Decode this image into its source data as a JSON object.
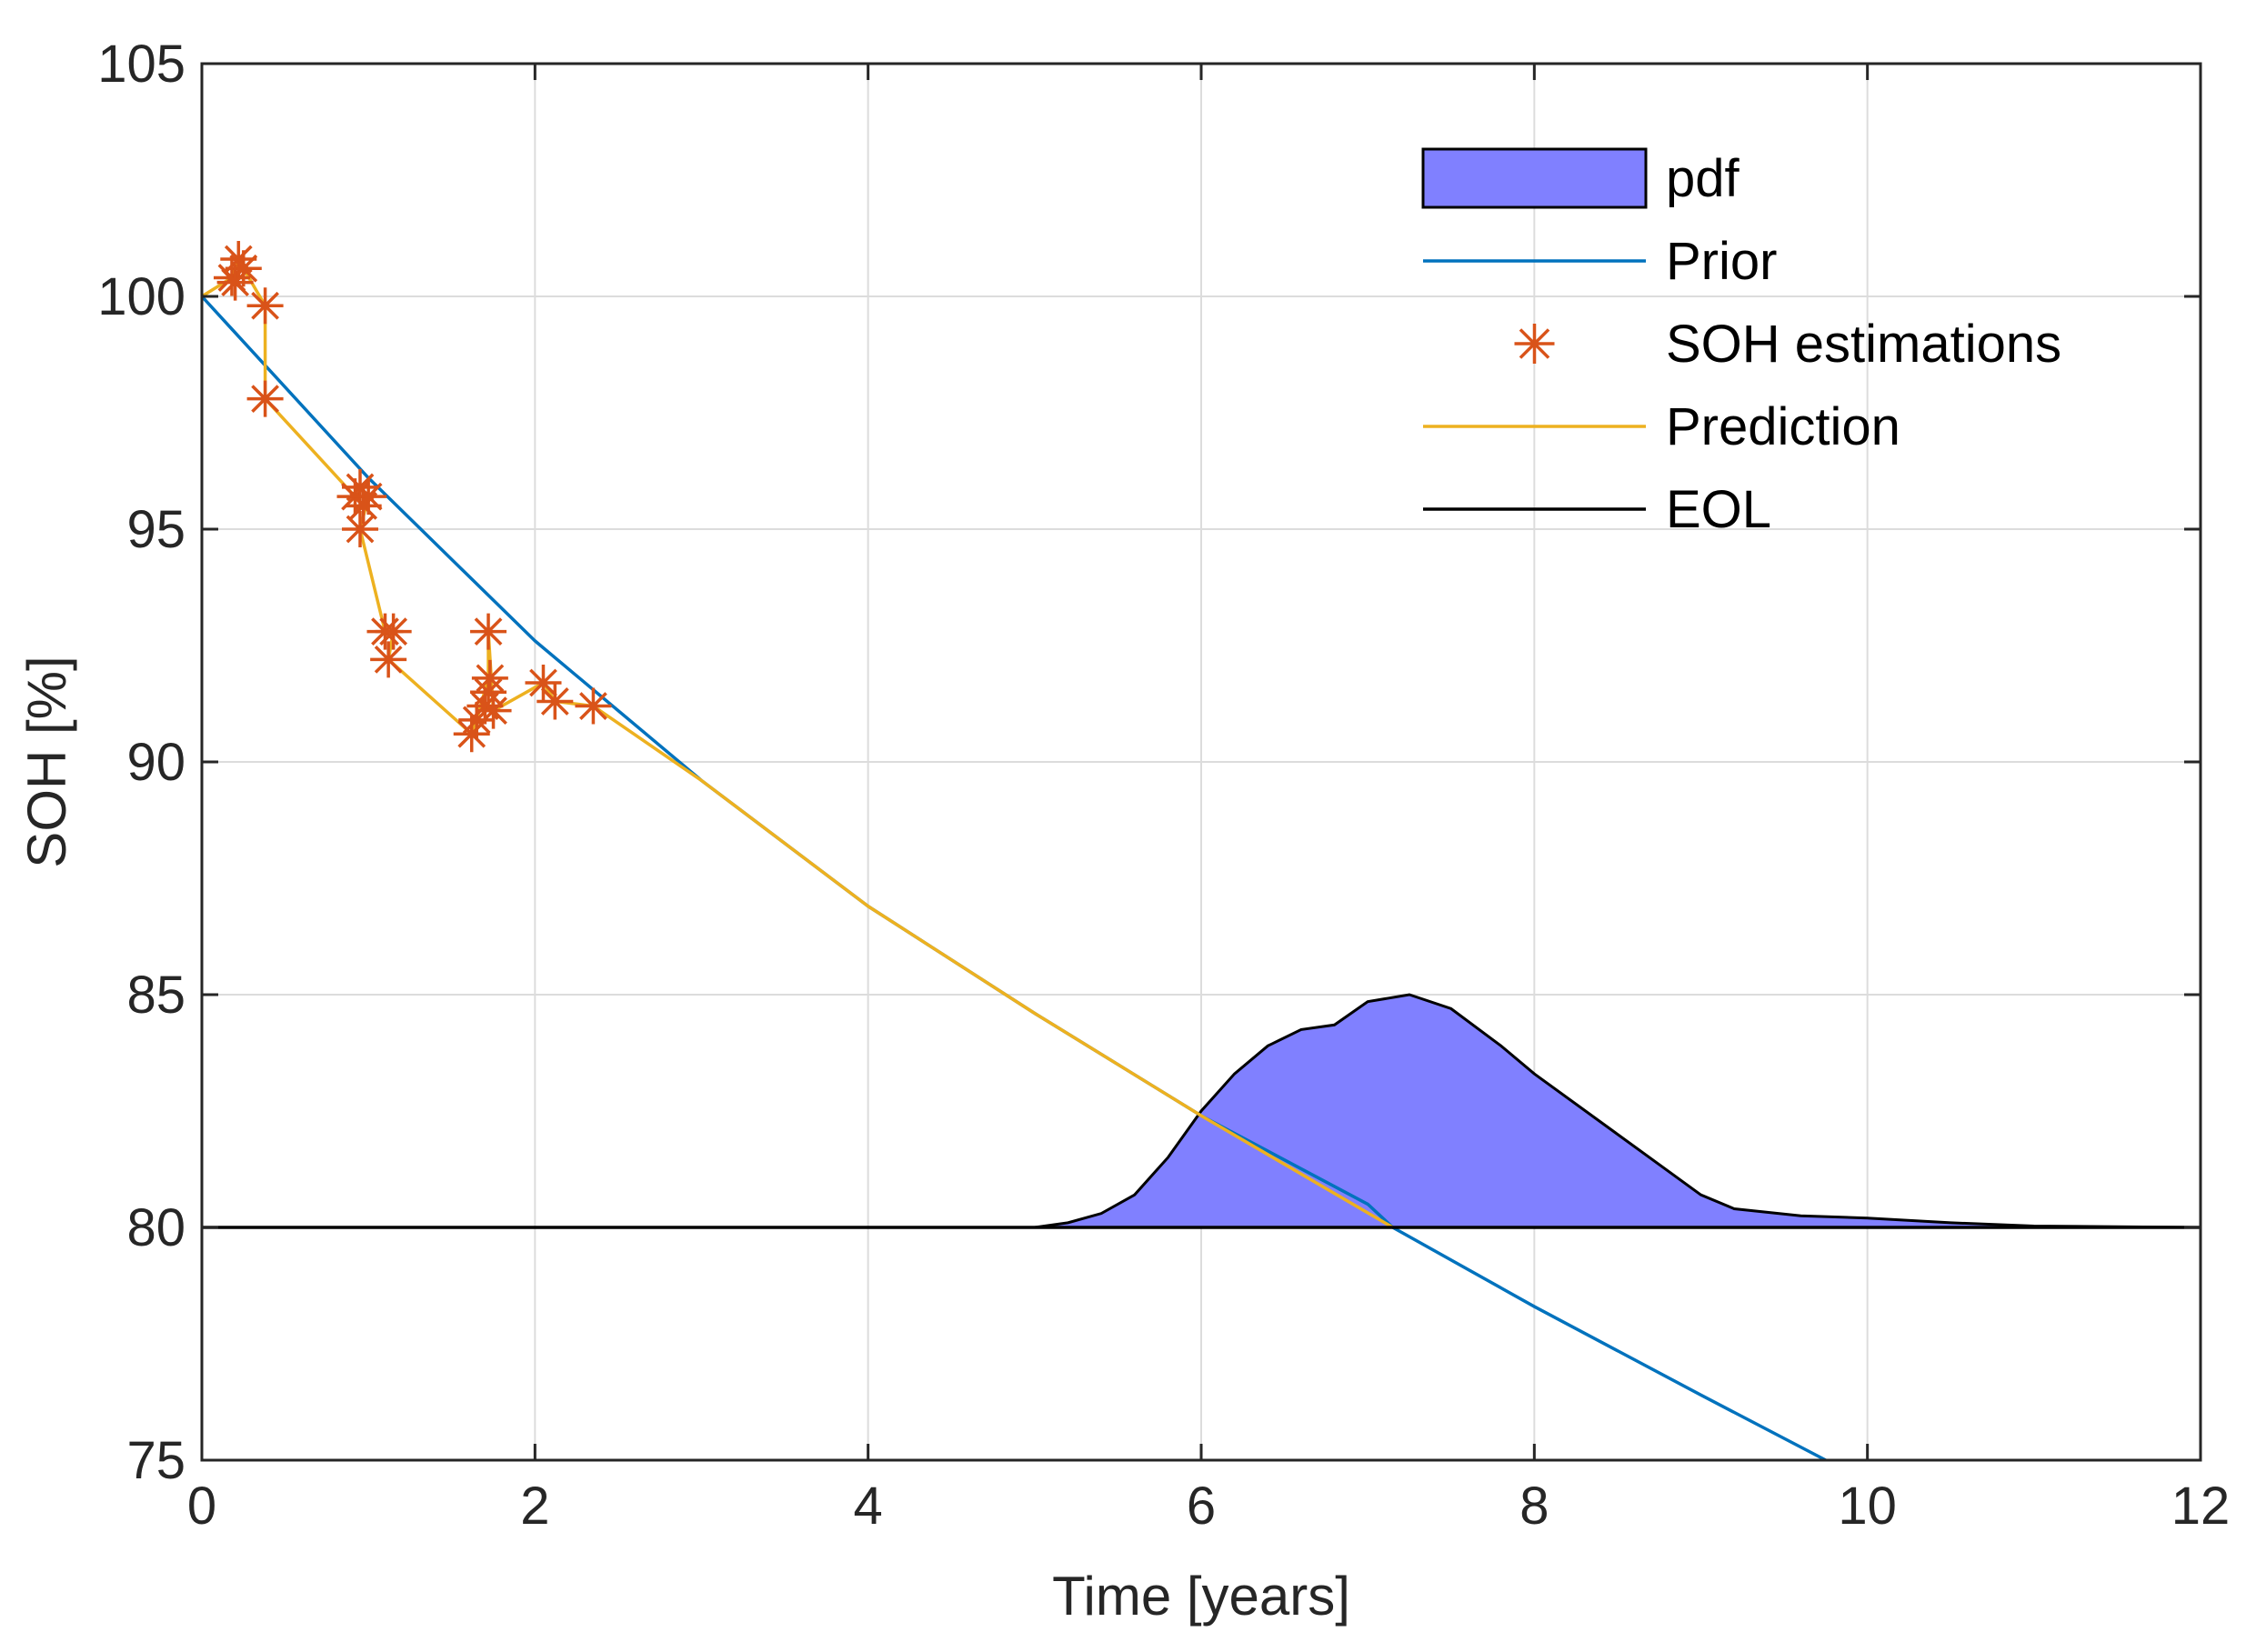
{
  "chart_data": {
    "type": "line",
    "title": "",
    "xlabel": "Time [years]",
    "ylabel": "SOH [%]",
    "xlim": [
      0,
      12
    ],
    "ylim": [
      75,
      105
    ],
    "xticks": [
      0,
      2,
      4,
      6,
      8,
      10,
      12
    ],
    "yticks": [
      75,
      80,
      85,
      90,
      95,
      100,
      105
    ],
    "grid": true,
    "legend_position": "top-right",
    "series": [
      {
        "name": "pdf",
        "kind": "area",
        "color": "#8080ff",
        "baseline": 80,
        "x": [
          0,
          5.0,
          5.2,
          5.4,
          5.6,
          5.8,
          6.0,
          6.2,
          6.4,
          6.6,
          6.8,
          7.0,
          7.25,
          7.5,
          7.8,
          8.0,
          8.5,
          9.0,
          9.2,
          9.6,
          10.0,
          10.5,
          11.0,
          12.0
        ],
        "y": [
          80,
          80.0,
          80.1,
          80.3,
          80.7,
          81.5,
          82.5,
          83.3,
          83.9,
          84.25,
          84.35,
          84.85,
          85.0,
          84.7,
          83.9,
          83.3,
          82.0,
          80.7,
          80.4,
          80.25,
          80.2,
          80.1,
          80.03,
          80.0
        ]
      },
      {
        "name": "Prior",
        "kind": "line",
        "color": "#0072bd",
        "x": [
          0,
          1,
          2,
          3,
          4,
          5,
          6,
          7,
          7.15,
          8,
          9,
          9.75
        ],
        "y": [
          100,
          96.1,
          92.6,
          89.6,
          86.9,
          84.6,
          82.4,
          80.5,
          80.0,
          78.3,
          76.4,
          75.0
        ]
      },
      {
        "name": "SOH estimations",
        "kind": "scatter",
        "color": "#d95319",
        "x": [
          0.18,
          0.22,
          0.25,
          0.2,
          0.38,
          0.38,
          0.92,
          0.95,
          0.97,
          1.0,
          0.95,
          1.1,
          1.15,
          1.12,
          1.62,
          1.65,
          1.7,
          1.72,
          1.73,
          1.75,
          1.72,
          2.05,
          2.12,
          2.35
        ],
        "y": [
          100.4,
          100.8,
          100.6,
          100.3,
          99.8,
          97.8,
          95.7,
          95.9,
          95.5,
          95.7,
          95.0,
          92.8,
          92.8,
          92.2,
          90.6,
          90.9,
          91.2,
          91.5,
          91.8,
          91.1,
          92.8,
          91.7,
          91.3,
          91.2
        ]
      },
      {
        "name": "Prediction",
        "kind": "line",
        "color": "#edb120",
        "x": [
          0,
          0.18,
          0.22,
          0.25,
          0.38,
          0.38,
          0.92,
          0.97,
          1.0,
          0.95,
          1.1,
          1.15,
          1.12,
          1.62,
          1.65,
          1.72,
          1.72,
          1.75,
          2.05,
          2.12,
          2.35,
          3,
          4,
          5,
          6,
          7.15
        ],
        "y": [
          100,
          100.4,
          100.8,
          100.6,
          99.8,
          97.8,
          95.7,
          95.5,
          95.7,
          95.0,
          92.8,
          92.8,
          92.2,
          90.6,
          90.9,
          91.8,
          92.8,
          91.1,
          91.7,
          91.3,
          91.2,
          89.6,
          86.9,
          84.6,
          82.4,
          80.0
        ]
      },
      {
        "name": "EOL",
        "kind": "line",
        "color": "#000000",
        "x": [
          0,
          12
        ],
        "y": [
          80,
          80
        ]
      }
    ]
  }
}
